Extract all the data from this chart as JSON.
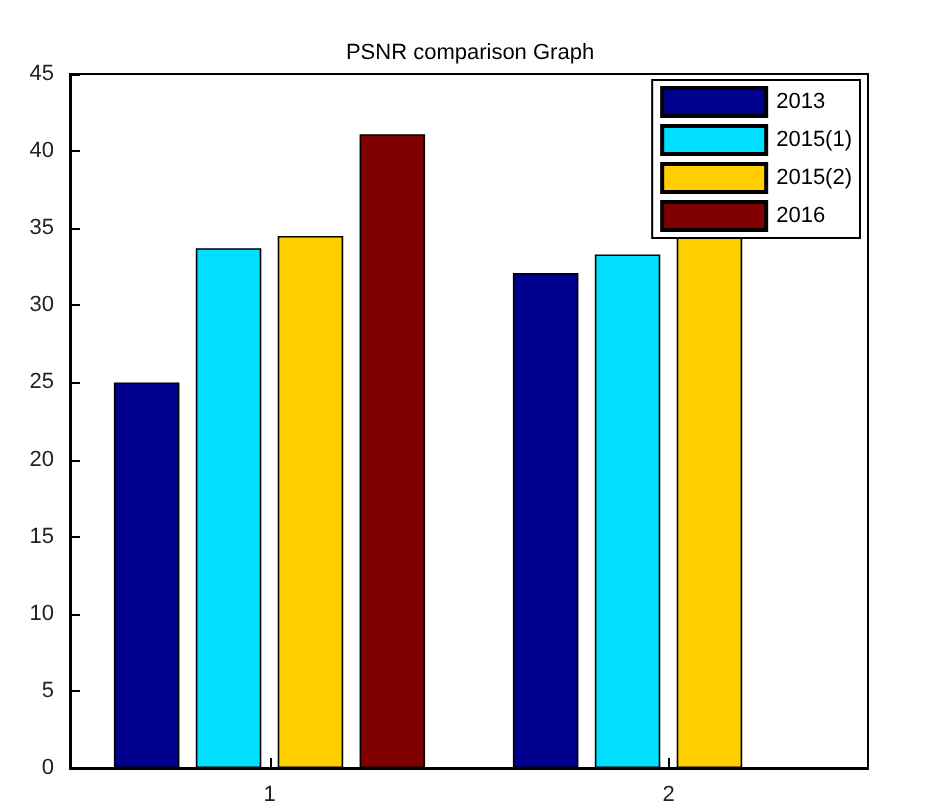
{
  "chart_data": {
    "type": "bar",
    "title": "PSNR comparison Graph",
    "categories": [
      "1",
      "2"
    ],
    "series": [
      {
        "name": "2013",
        "color": "#00008f",
        "values": [
          25.0,
          32.1
        ]
      },
      {
        "name": "2015(1)",
        "color": "#00dfff",
        "values": [
          33.7,
          33.3
        ]
      },
      {
        "name": "2015(2)",
        "color": "#ffcf00",
        "values": [
          34.5,
          34.5
        ]
      },
      {
        "name": "2016",
        "color": "#800000",
        "values": [
          41.1,
          null
        ]
      }
    ],
    "ylim": [
      0,
      45
    ],
    "yticks": [
      0,
      5,
      10,
      15,
      20,
      25,
      30,
      35,
      40,
      45
    ],
    "grid": false,
    "legend": "top right"
  }
}
